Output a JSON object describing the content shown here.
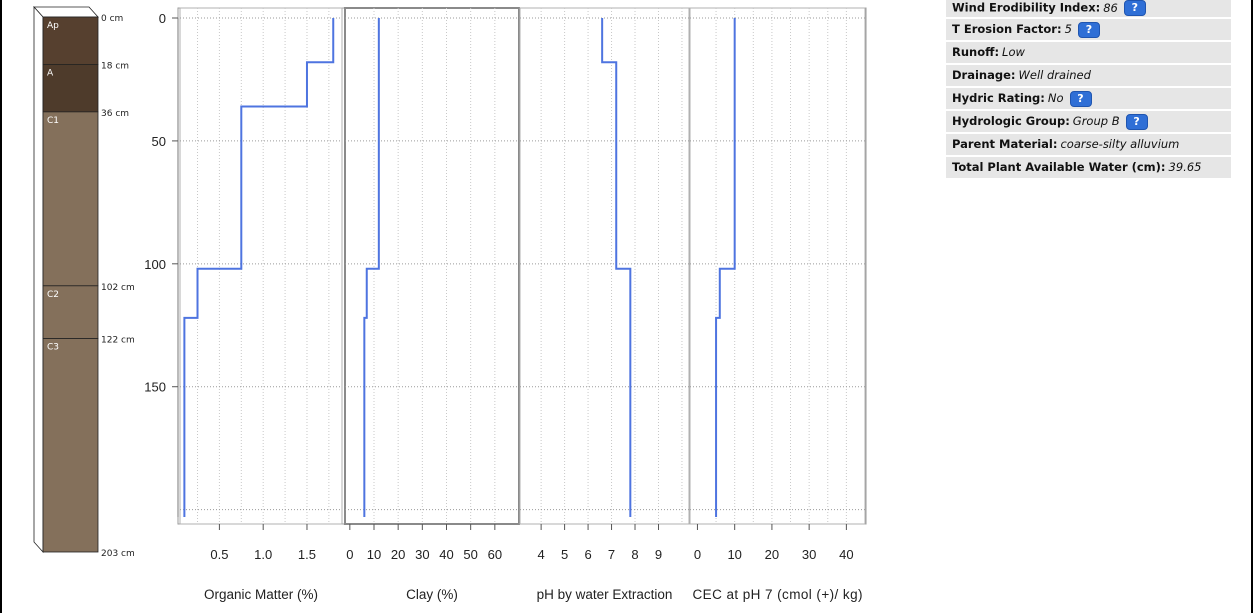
{
  "profile": {
    "horizons": [
      {
        "name": "Ap",
        "top": 0,
        "bottom": 18,
        "color": "#56402f"
      },
      {
        "name": "A",
        "top": 18,
        "bottom": 36,
        "color": "#4e3b2b"
      },
      {
        "name": "C1",
        "top": 36,
        "bottom": 102,
        "color": "#84705b"
      },
      {
        "name": "C2",
        "top": 102,
        "bottom": 122,
        "color": "#84705b"
      },
      {
        "name": "C3",
        "top": 122,
        "bottom": 203,
        "color": "#84705b"
      }
    ],
    "depth_labels": [
      "0 cm",
      "18 cm",
      "36 cm",
      "102 cm",
      "122 cm",
      "203 cm"
    ]
  },
  "chart_data": {
    "type": "line",
    "depth_axis": {
      "ticks": [
        "0",
        "50",
        "100",
        "150"
      ],
      "tick_values": [
        0,
        50,
        100,
        150
      ],
      "range": [
        0,
        203
      ],
      "inverted": true
    },
    "panels": [
      {
        "xlabel": "Organic Matter (%)",
        "xlim": [
          0.05,
          1.9
        ],
        "ticks": [
          0.5,
          1.0,
          1.5
        ],
        "tick_labels": [
          "0.5",
          "1.0",
          "1.5"
        ],
        "grid_ticks": [
          0.25,
          0.5,
          0.75,
          1.0,
          1.25,
          1.5,
          1.75
        ],
        "profile": [
          {
            "top": 0,
            "bottom": 18,
            "value": 1.8
          },
          {
            "top": 18,
            "bottom": 36,
            "value": 1.5
          },
          {
            "top": 36,
            "bottom": 102,
            "value": 0.75
          },
          {
            "top": 102,
            "bottom": 122,
            "value": 0.25
          },
          {
            "top": 122,
            "bottom": 203,
            "value": 0.1
          }
        ]
      },
      {
        "xlabel": "Clay (%)",
        "xlim": [
          -2,
          70
        ],
        "ticks": [
          0,
          10,
          20,
          30,
          40,
          50,
          60
        ],
        "tick_labels": [
          "0",
          "10",
          "20",
          "30",
          "40",
          "50",
          "60"
        ],
        "grid_ticks": [
          10,
          20,
          30,
          40,
          50,
          60
        ],
        "profile": [
          {
            "top": 0,
            "bottom": 18,
            "value": 12
          },
          {
            "top": 18,
            "bottom": 36,
            "value": 12
          },
          {
            "top": 36,
            "bottom": 102,
            "value": 12
          },
          {
            "top": 102,
            "bottom": 122,
            "value": 7
          },
          {
            "top": 122,
            "bottom": 203,
            "value": 6
          }
        ]
      },
      {
        "xlabel": "pH by water Extraction",
        "xlim": [
          3.1,
          10.3
        ],
        "ticks": [
          4,
          5,
          6,
          7,
          8,
          9
        ],
        "tick_labels": [
          "4",
          "5",
          "6",
          "7",
          "8",
          "9"
        ],
        "grid_ticks": [
          4,
          5,
          6,
          7,
          8,
          9,
          10
        ],
        "profile": [
          {
            "top": 0,
            "bottom": 18,
            "value": 6.6
          },
          {
            "top": 18,
            "bottom": 36,
            "value": 7.2
          },
          {
            "top": 36,
            "bottom": 102,
            "value": 7.2
          },
          {
            "top": 102,
            "bottom": 122,
            "value": 7.8
          },
          {
            "top": 122,
            "bottom": 203,
            "value": 7.8
          }
        ]
      },
      {
        "xlabel": "CEC at pH 7 (cmol (+)/ kg)",
        "xlim": [
          -2,
          45
        ],
        "ticks": [
          0,
          10,
          20,
          30,
          40
        ],
        "tick_labels": [
          "0",
          "10",
          "20",
          "30",
          "40"
        ],
        "grid_ticks": [
          5,
          10,
          15,
          20,
          25,
          30,
          35,
          40
        ],
        "profile": [
          {
            "top": 0,
            "bottom": 18,
            "value": 10
          },
          {
            "top": 18,
            "bottom": 36,
            "value": 10
          },
          {
            "top": 36,
            "bottom": 102,
            "value": 10
          },
          {
            "top": 102,
            "bottom": 122,
            "value": 6
          },
          {
            "top": 122,
            "bottom": 203,
            "value": 5
          }
        ]
      }
    ],
    "line_color": "#4e74e0",
    "grid": true
  },
  "properties": [
    {
      "key": "Wind Erodibility Index:",
      "value": "86",
      "help": "?"
    },
    {
      "key": "T Erosion Factor:",
      "value": "5",
      "help": "?"
    },
    {
      "key": "Runoff:",
      "value": "Low",
      "help": ""
    },
    {
      "key": "Drainage:",
      "value": "Well drained",
      "help": ""
    },
    {
      "key": "Hydric Rating:",
      "value": "No",
      "help": "?"
    },
    {
      "key": "Hydrologic Group:",
      "value": "Group B",
      "help": "?"
    },
    {
      "key": "Parent Material:",
      "value": "coarse-silty alluvium",
      "help": ""
    },
    {
      "key": "Total Plant Available Water (cm):",
      "value": "39.65",
      "help": ""
    }
  ]
}
